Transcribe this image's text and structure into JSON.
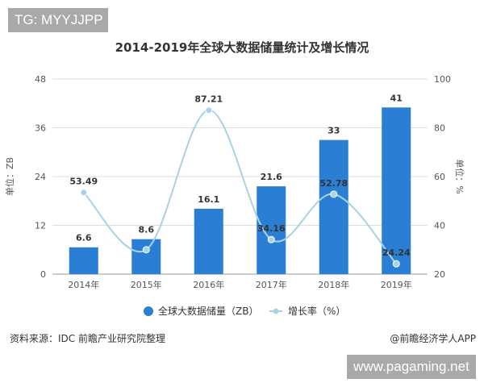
{
  "watermark_top": "TG: MYYJJPP",
  "watermark_bottom": "www.pagaming.net",
  "source": "资料来源：IDC 前瞻产业研究院整理",
  "credit": "@前瞻经济学人APP",
  "chart_data": {
    "type": "bar+line",
    "title": "2014-2019年全球大数据储量统计及增长情况",
    "categories": [
      "2014年",
      "2015年",
      "2016年",
      "2017年",
      "2018年",
      "2019年"
    ],
    "ylabel_left": "单位：ZB",
    "ylabel_right": "单位：%",
    "ylim_left": [
      0,
      48
    ],
    "yticks_left": [
      0,
      12,
      24,
      36,
      48
    ],
    "ylim_right": [
      20,
      100
    ],
    "yticks_right": [
      20,
      40,
      60,
      80,
      100
    ],
    "grid": false,
    "legend_position": "bottom",
    "series": [
      {
        "name": "全球大数据储量（ZB）",
        "type": "bar",
        "axis": "left",
        "color": "#2a7fd4",
        "values": [
          6.6,
          8.6,
          16.1,
          21.6,
          33,
          41
        ],
        "labels": [
          "6.6",
          "8.6",
          "16.1",
          "21.6",
          "33",
          "41"
        ]
      },
      {
        "name": "增长率（%）",
        "type": "line",
        "axis": "right",
        "color": "#a8d2e6",
        "values": [
          53.49,
          30,
          87.21,
          34.16,
          52.78,
          24.24
        ],
        "labels": [
          "53.49",
          "",
          "87.21",
          "34.16",
          "52.78",
          "24.24"
        ]
      }
    ]
  }
}
